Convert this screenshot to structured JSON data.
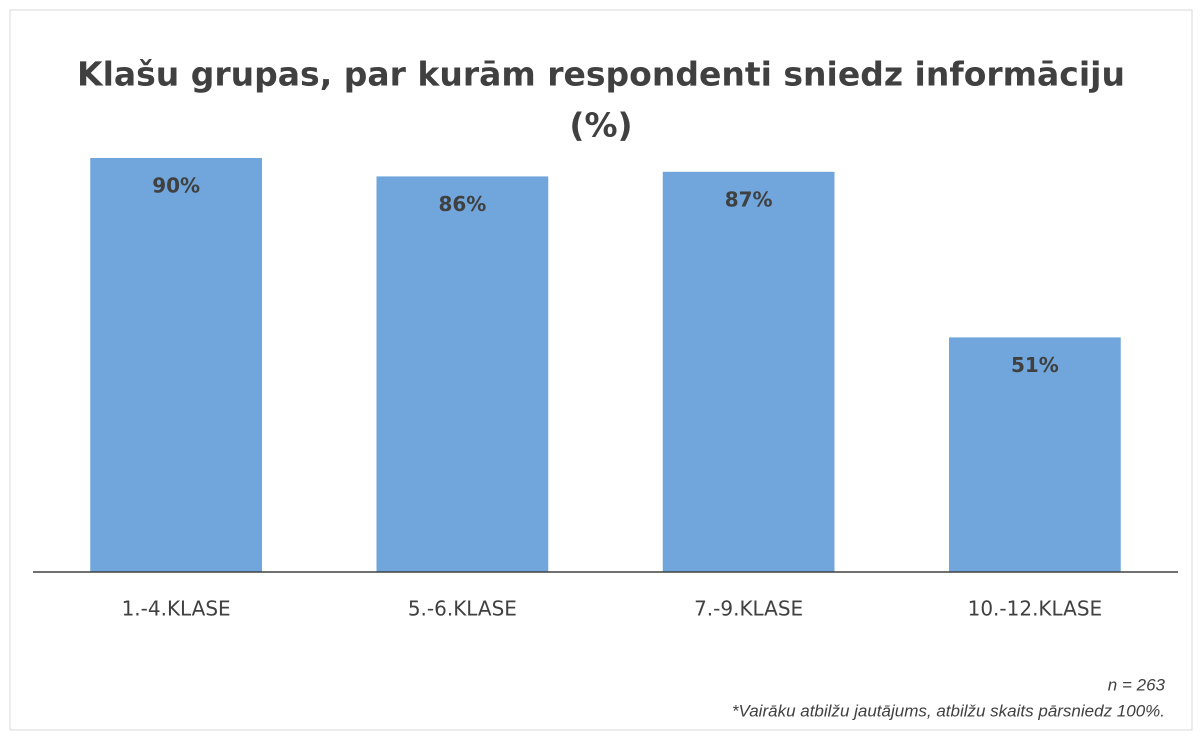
{
  "chart_data": {
    "type": "bar",
    "title": [
      "Klašu grupas, par kurām respondenti sniedz informāciju",
      "(%)"
    ],
    "categories": [
      "1.-4.KLASE",
      "5.-6.KLASE",
      "7.-9.KLASE",
      "10.-12.KLASE"
    ],
    "values": [
      90,
      86,
      87,
      51
    ],
    "value_labels": [
      "90%",
      "86%",
      "87%",
      "51%"
    ],
    "color": "#70a6db",
    "ylim": [
      0,
      100
    ],
    "annotations": [
      "n = 263",
      "*Vairāku atbilžu jautājums, atbilžu skaits pārsniedz 100%."
    ]
  }
}
